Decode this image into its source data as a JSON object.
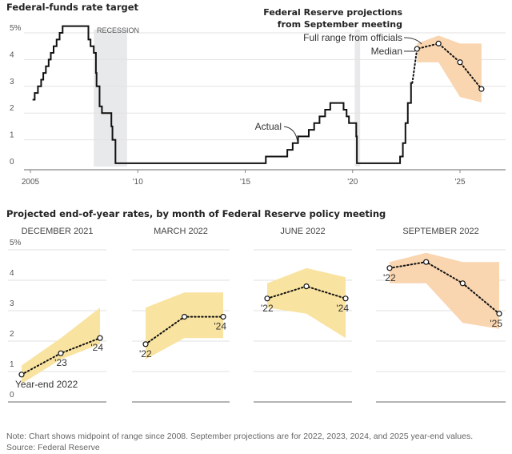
{
  "colors": {
    "line": "#111111",
    "recession": "#e8e9eb",
    "band_past": "#f9e3a0",
    "band_current": "#f9d5b0",
    "grid": "#e2e2e2"
  },
  "chart_data": [
    {
      "type": "line",
      "title": "Federal-funds rate target",
      "ylabel": "",
      "ylim": [
        0,
        5
      ],
      "xlim": [
        2005,
        2027
      ],
      "yticks": [
        "0",
        "1",
        "2",
        "3",
        "4",
        "5%"
      ],
      "xticks": [
        {
          "value": 2005,
          "label": "2005"
        },
        {
          "value": 2010,
          "label": "'10"
        },
        {
          "value": 2015,
          "label": "'15"
        },
        {
          "value": 2020,
          "label": "'20"
        },
        {
          "value": 2025,
          "label": "'25"
        }
      ],
      "grid": true,
      "recessions": [
        {
          "label": "RECESSION",
          "start": 2007.95,
          "end": 2009.5
        },
        {
          "label": "",
          "start": 2020.1,
          "end": 2020.35
        }
      ],
      "actual": {
        "label": "Actual",
        "steps": [
          [
            2005.1,
            2.5
          ],
          [
            2005.2,
            2.75
          ],
          [
            2005.35,
            3.0
          ],
          [
            2005.5,
            3.25
          ],
          [
            2005.6,
            3.5
          ],
          [
            2005.72,
            3.75
          ],
          [
            2005.85,
            4.0
          ],
          [
            2005.95,
            4.25
          ],
          [
            2006.08,
            4.5
          ],
          [
            2006.22,
            4.75
          ],
          [
            2006.36,
            5.0
          ],
          [
            2006.5,
            5.25
          ],
          [
            2007.7,
            4.75
          ],
          [
            2007.8,
            4.5
          ],
          [
            2007.95,
            4.25
          ],
          [
            2008.05,
            3.5
          ],
          [
            2008.08,
            3.0
          ],
          [
            2008.22,
            2.25
          ],
          [
            2008.33,
            2.0
          ],
          [
            2008.77,
            1.5
          ],
          [
            2008.82,
            1.0
          ],
          [
            2008.96,
            0.125
          ],
          [
            2015.96,
            0.375
          ],
          [
            2016.96,
            0.625
          ],
          [
            2017.21,
            0.875
          ],
          [
            2017.46,
            1.125
          ],
          [
            2017.96,
            1.375
          ],
          [
            2018.21,
            1.625
          ],
          [
            2018.46,
            1.875
          ],
          [
            2018.72,
            2.125
          ],
          [
            2018.96,
            2.375
          ],
          [
            2019.58,
            2.125
          ],
          [
            2019.72,
            1.875
          ],
          [
            2019.83,
            1.625
          ],
          [
            2020.17,
            1.125
          ],
          [
            2020.2,
            0.125
          ],
          [
            2022.21,
            0.375
          ],
          [
            2022.34,
            0.875
          ],
          [
            2022.46,
            1.625
          ],
          [
            2022.57,
            2.375
          ],
          [
            2022.72,
            3.125
          ],
          [
            2022.78,
            3.125
          ]
        ]
      },
      "projection": {
        "title_line1": "Federal Reserve projections",
        "title_line2": "from September meeting",
        "range_label": "Full range from officials",
        "median_label": "Median",
        "median": [
          [
            2023,
            4.4
          ],
          [
            2024,
            4.6
          ],
          [
            2025,
            3.9
          ],
          [
            2026,
            2.9
          ]
        ],
        "range": [
          [
            2023,
            3.9,
            4.6
          ],
          [
            2024,
            3.9,
            4.9
          ],
          [
            2025,
            2.6,
            4.6
          ],
          [
            2026,
            2.4,
            4.6
          ]
        ]
      }
    },
    {
      "type": "line",
      "title": "Projected end-of-year rates, by month of Federal Reserve policy meeting",
      "ylim": [
        0,
        5
      ],
      "yticks": [
        "0",
        "1",
        "2",
        "3",
        "4",
        "5%"
      ],
      "grid": true,
      "panels": [
        {
          "title": "DECEMBER 2021",
          "years": [
            2022,
            2023,
            2024
          ],
          "median": [
            0.9,
            1.6,
            2.1
          ],
          "low": [
            0.6,
            1.4,
            1.9
          ],
          "high": [
            1.2,
            2.1,
            3.1
          ],
          "labels": [
            "Year-end 2022",
            "'23",
            "'24"
          ]
        },
        {
          "title": "MARCH 2022",
          "years": [
            2022,
            2023,
            2024
          ],
          "median": [
            1.9,
            2.8,
            2.8
          ],
          "low": [
            1.4,
            2.1,
            2.1
          ],
          "high": [
            3.1,
            3.6,
            3.6
          ],
          "labels": [
            "'22",
            "",
            "'24"
          ]
        },
        {
          "title": "JUNE 2022",
          "years": [
            2022,
            2023,
            2024
          ],
          "median": [
            3.4,
            3.8,
            3.4
          ],
          "low": [
            3.1,
            2.9,
            2.1
          ],
          "high": [
            3.9,
            4.4,
            4.1
          ],
          "labels": [
            "'22",
            "",
            "'24"
          ]
        },
        {
          "title": "SEPTEMBER 2022",
          "years": [
            2022,
            2023,
            2024,
            2025
          ],
          "median": [
            4.4,
            4.6,
            3.9,
            2.9
          ],
          "low": [
            3.9,
            3.9,
            2.6,
            2.4
          ],
          "high": [
            4.6,
            4.9,
            4.6,
            4.6
          ],
          "labels": [
            "'22",
            "",
            "",
            "'25"
          ]
        }
      ]
    }
  ],
  "footer": {
    "note": "Note: Chart shows midpoint of range since 2008. September projections are for 2022, 2023, 2024, and 2025 year-end values.",
    "source": "Source: Federal Reserve"
  }
}
